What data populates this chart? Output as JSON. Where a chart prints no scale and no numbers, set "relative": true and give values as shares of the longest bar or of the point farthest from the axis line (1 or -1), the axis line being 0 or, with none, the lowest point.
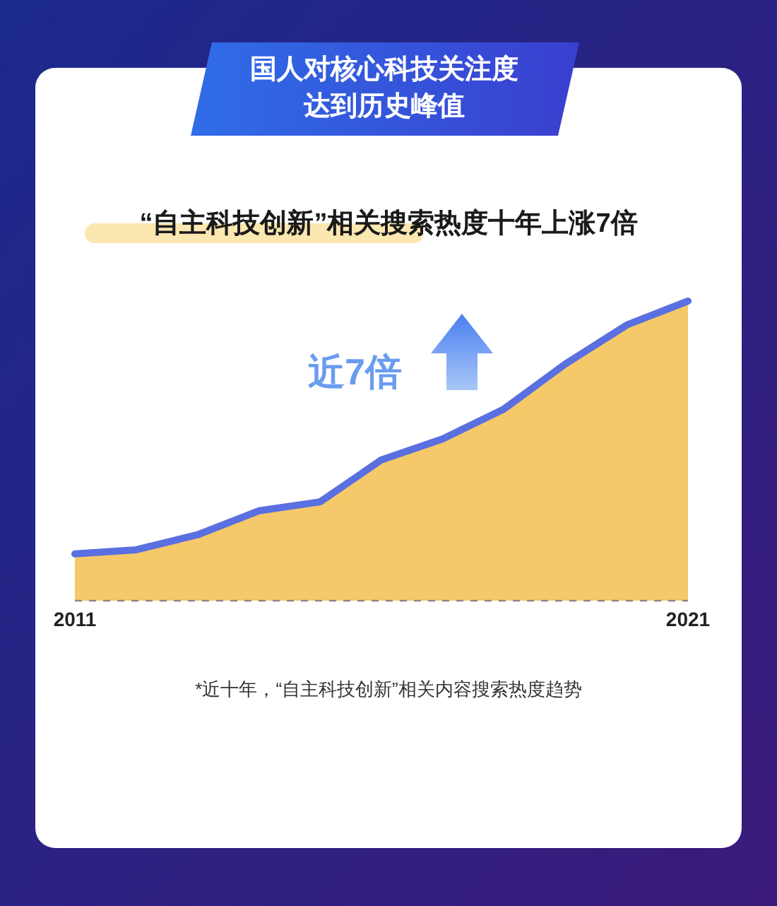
{
  "chart_data": {
    "type": "area",
    "title": "国人对核心科技关注度达到历史峰值",
    "subtitle": "“自主科技创新”相关搜索热度十年上涨7倍",
    "relative": true,
    "categories": [
      "2011",
      null,
      null,
      null,
      null,
      null,
      null,
      null,
      null,
      null,
      "2021"
    ],
    "series": [
      {
        "color": "#f5c96a",
        "values": [
          0.156,
          0.17,
          0.22,
          0.3,
          0.33,
          0.47,
          0.54,
          0.64,
          0.79,
          0.92,
          1
        ]
      }
    ],
    "annotations": [
      "近7倍",
      "*近十年，“自主科技创新”相关内容搜索热度趋势"
    ],
    "grid": false
  }
}
